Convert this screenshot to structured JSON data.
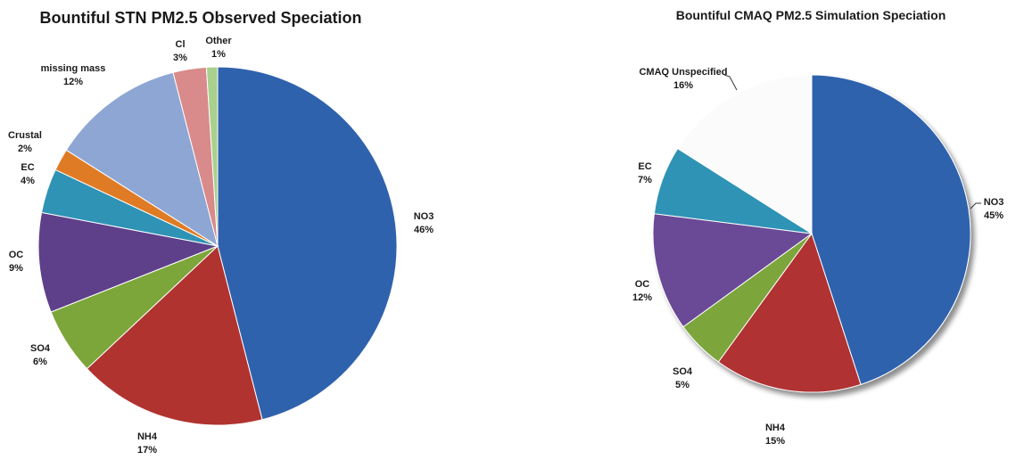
{
  "chart_data": [
    {
      "type": "pie",
      "title": "Bountiful STN PM2.5 Observed Speciation",
      "slices": [
        {
          "label": "NO3",
          "value": 46,
          "pct": "46%",
          "color": "#2f62ad"
        },
        {
          "label": "NH4",
          "value": 17,
          "pct": "17%",
          "color": "#b03330"
        },
        {
          "label": "SO4",
          "value": 6,
          "pct": "6%",
          "color": "#7ca63a"
        },
        {
          "label": "OC",
          "value": 9,
          "pct": "9%",
          "color": "#5e3f8a"
        },
        {
          "label": "EC",
          "value": 4,
          "pct": "4%",
          "color": "#2f93b5"
        },
        {
          "label": "Crustal",
          "value": 2,
          "pct": "2%",
          "color": "#e07b25"
        },
        {
          "label": "missing mass",
          "value": 12,
          "pct": "12%",
          "color": "#8ea6d4"
        },
        {
          "label": "Cl",
          "value": 3,
          "pct": "3%",
          "color": "#d98a8a"
        },
        {
          "label": "Other",
          "value": 1,
          "pct": "1%",
          "color": "#a9d18e"
        }
      ]
    },
    {
      "type": "pie",
      "title": "Bountiful CMAQ PM2.5 Simulation Speciation",
      "slices": [
        {
          "label": "NO3",
          "value": 45,
          "pct": "45%",
          "color": "#2f62ad"
        },
        {
          "label": "NH4",
          "value": 15,
          "pct": "15%",
          "color": "#b03330"
        },
        {
          "label": "SO4",
          "value": 5,
          "pct": "5%",
          "color": "#7ca63a"
        },
        {
          "label": "OC",
          "value": 12,
          "pct": "12%",
          "color": "#6a4a96"
        },
        {
          "label": "EC",
          "value": 7,
          "pct": "7%",
          "color": "#2f93b5"
        },
        {
          "label": "CMAQ Unspecified",
          "value": 16,
          "pct": "16%",
          "color": "#fbfbfb"
        }
      ]
    }
  ]
}
